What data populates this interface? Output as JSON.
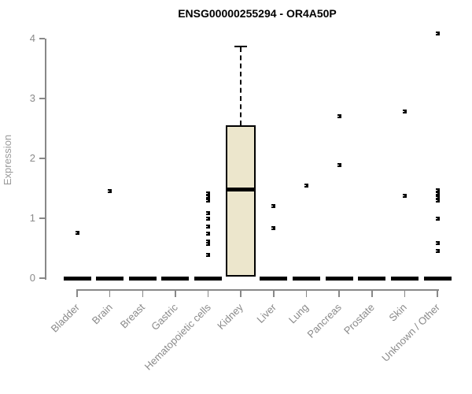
{
  "chart_data": {
    "type": "boxplot",
    "title": "ENSG00000255294 - OR4A50P",
    "ylabel": "Expression",
    "xlabel": "",
    "ylim": [
      0,
      4.1
    ],
    "yticks": [
      0,
      1,
      2,
      3,
      4
    ],
    "grid": false,
    "legend": "none",
    "categories": [
      "Bladder",
      "Brain",
      "Breast",
      "Gastric",
      "Hematopoietic cells",
      "Kidney",
      "Liver",
      "Lung",
      "Pancreas",
      "Prostate",
      "Skin",
      "Unknown / Other"
    ],
    "series": [
      {
        "name": "Bladder",
        "q1": 0,
        "median": 0,
        "q3": 0,
        "whisker_low": 0,
        "whisker_high": 0,
        "outliers": [
          0.76
        ]
      },
      {
        "name": "Brain",
        "q1": 0,
        "median": 0,
        "q3": 0,
        "whisker_low": 0,
        "whisker_high": 0,
        "outliers": [
          1.45
        ]
      },
      {
        "name": "Breast",
        "q1": 0,
        "median": 0,
        "q3": 0,
        "whisker_low": 0,
        "whisker_high": 0,
        "outliers": []
      },
      {
        "name": "Gastric",
        "q1": 0,
        "median": 0,
        "q3": 0,
        "whisker_low": 0,
        "whisker_high": 0,
        "outliers": []
      },
      {
        "name": "Hematopoietic cells",
        "q1": 0,
        "median": 0,
        "q3": 0,
        "whisker_low": 0,
        "whisker_high": 0,
        "outliers": [
          1.41,
          1.36,
          1.3,
          1.09,
          0.99,
          0.86,
          0.74,
          0.61,
          0.57,
          0.39
        ]
      },
      {
        "name": "Kidney",
        "q1": 0.02,
        "median": 1.48,
        "q3": 2.55,
        "whisker_low": 0.02,
        "whisker_high": 3.88,
        "outliers": []
      },
      {
        "name": "Liver",
        "q1": 0,
        "median": 0,
        "q3": 0,
        "whisker_low": 0,
        "whisker_high": 0,
        "outliers": [
          1.21,
          0.84
        ]
      },
      {
        "name": "Lung",
        "q1": 0,
        "median": 0,
        "q3": 0,
        "whisker_low": 0,
        "whisker_high": 0,
        "outliers": [
          1.55
        ]
      },
      {
        "name": "Pancreas",
        "q1": 0,
        "median": 0,
        "q3": 0,
        "whisker_low": 0,
        "whisker_high": 0,
        "outliers": [
          2.71,
          1.89
        ]
      },
      {
        "name": "Prostate",
        "q1": 0,
        "median": 0,
        "q3": 0,
        "whisker_low": 0,
        "whisker_high": 0,
        "outliers": []
      },
      {
        "name": "Skin",
        "q1": 0,
        "median": 0,
        "q3": 0,
        "whisker_low": 0,
        "whisker_high": 0,
        "outliers": [
          2.78,
          1.38
        ]
      },
      {
        "name": "Unknown / Other",
        "q1": 0,
        "median": 0,
        "q3": 0,
        "whisker_low": 0,
        "whisker_high": 0,
        "outliers": [
          4.08,
          1.47,
          1.41,
          1.35,
          1.3,
          1.0,
          0.59,
          0.45
        ]
      }
    ],
    "colors": {
      "box_fill": "#ECE6CC",
      "box_border": "#000000",
      "axis": "#888888",
      "tick_label": "#8a8a8a",
      "title": "#000000"
    }
  }
}
